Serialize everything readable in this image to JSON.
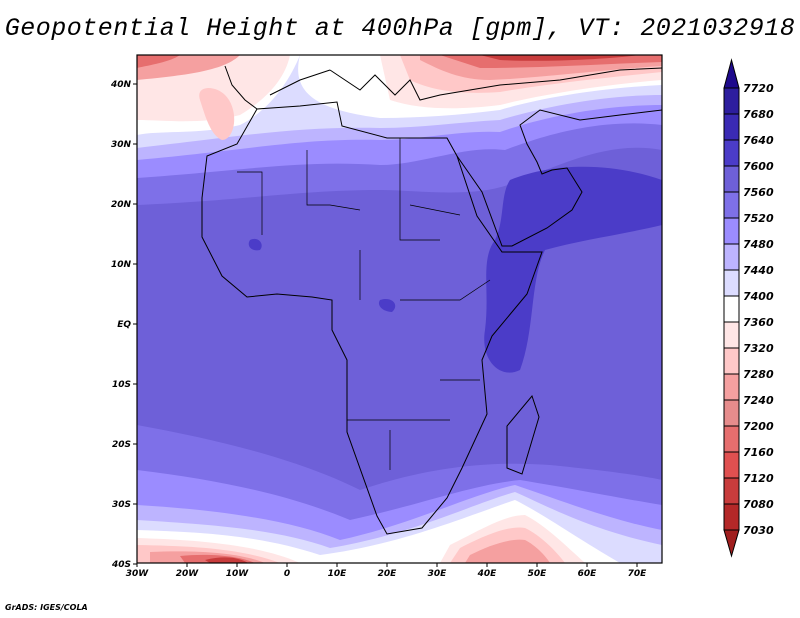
{
  "title": "Geopotential Height at 400hPa [gpm], VT: 2021032918",
  "credit": "GrADS: IGES/COLA",
  "lat_labels": [
    "40N",
    "30N",
    "20N",
    "10N",
    "EQ",
    "10S",
    "20S",
    "30S",
    "40S"
  ],
  "lon_labels": [
    "30W",
    "20W",
    "10W",
    "0",
    "10E",
    "20E",
    "30E",
    "40E",
    "50E",
    "60E",
    "70E"
  ],
  "colorbar": {
    "labels": [
      "7720",
      "7680",
      "7640",
      "7600",
      "7560",
      "7520",
      "7480",
      "7440",
      "7400",
      "7360",
      "7320",
      "7280",
      "7240",
      "7200",
      "7160",
      "7120",
      "7080",
      "7030"
    ],
    "colors": [
      "#2d1e9e",
      "#3a2ab4",
      "#4b3cc8",
      "#6e60d8",
      "#7e70e8",
      "#9b8cff",
      "#bdb4ff",
      "#dcdcff",
      "#ffffff",
      "#ffe6e6",
      "#ffc8c8",
      "#f5a0a0",
      "#e68c8c",
      "#e66e6e",
      "#e05050",
      "#c83c3c",
      "#b42828"
    ],
    "top_arrow_color": "#1e0a8c",
    "bottom_arrow_color": "#a01e1e"
  }
}
